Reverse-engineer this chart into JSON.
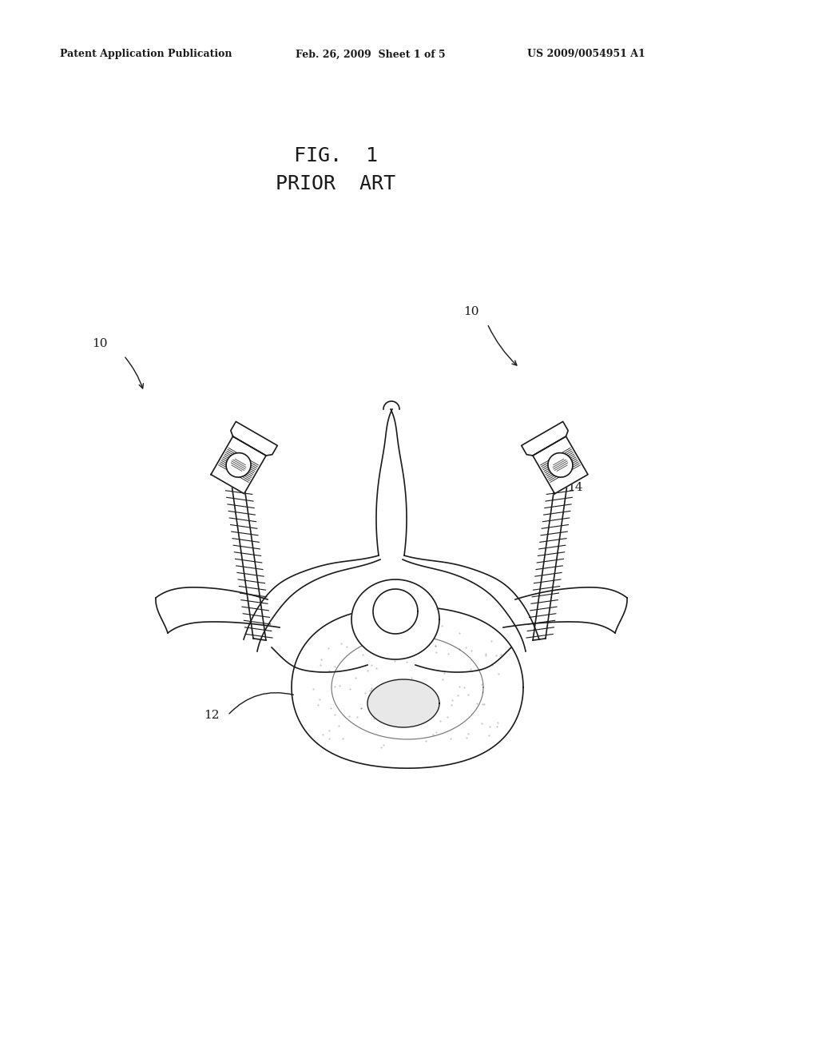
{
  "title": "FIG. 1\nPRIOR  ART",
  "header_left": "Patent Application Publication",
  "header_center": "Feb. 26, 2009  Sheet 1 of 5",
  "header_right": "US 2009/0054951 A1",
  "label_10_left": "10",
  "label_10_right": "10",
  "label_12": "12",
  "label_14": "14",
  "bg_color": "#ffffff",
  "line_color": "#1a1a1a",
  "fig_width": 10.24,
  "fig_height": 13.2
}
